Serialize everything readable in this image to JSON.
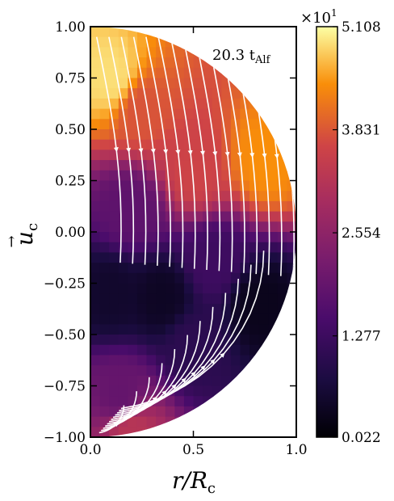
{
  "chart_data": {
    "type": "heatmap",
    "plot": "half-disk speed map with streamlines",
    "annotation": {
      "main": "20.3 t",
      "sub": "Alf"
    },
    "xlabel": {
      "text": "r/R",
      "sub": "c"
    },
    "ylabel": {
      "text": "u",
      "sub": "c",
      "accent": "→"
    },
    "xlim": [
      0.0,
      1.0
    ],
    "ylim": [
      -1.0,
      1.0
    ],
    "x_ticks": [
      0.0,
      0.5,
      1.0
    ],
    "x_tick_labels": [
      "0.0",
      "0.5",
      "1.0"
    ],
    "y_ticks": [
      1.0,
      0.75,
      0.5,
      0.25,
      0.0,
      -0.25,
      -0.5,
      -0.75,
      -1.0
    ],
    "y_tick_labels": [
      "1.00",
      "0.75",
      "0.50",
      "0.25",
      "0.00",
      "−0.25",
      "−0.50",
      "−0.75",
      "−1.00"
    ],
    "colorbar": {
      "colormap": "inferno",
      "range": [
        0.022,
        5.108
      ],
      "multiplier": {
        "base": "×10",
        "exp": "1"
      },
      "ticks": [
        5.108,
        3.831,
        2.554,
        1.277,
        0.022
      ],
      "tick_labels": [
        "5.108",
        "3.831",
        "2.554",
        "1.277",
        "0.022"
      ]
    },
    "field_samples": [
      {
        "r": 0.1,
        "z": 0.75,
        "value": 4.9
      },
      {
        "r": 0.25,
        "z": 0.6,
        "value": 3.8
      },
      {
        "r": 0.85,
        "z": 0.35,
        "value": 4.4
      },
      {
        "r": 0.5,
        "z": 0.3,
        "value": 3.6
      },
      {
        "r": 0.2,
        "z": 0.1,
        "value": 1.8
      },
      {
        "r": 0.6,
        "z": -0.15,
        "value": 1.3
      },
      {
        "r": 0.1,
        "z": -0.3,
        "value": 0.5
      },
      {
        "r": 0.35,
        "z": -0.32,
        "value": 0.4
      },
      {
        "r": 0.82,
        "z": -0.35,
        "value": 0.3
      },
      {
        "r": 0.5,
        "z": -0.55,
        "value": 1.0
      },
      {
        "r": 0.15,
        "z": -0.8,
        "value": 1.9
      },
      {
        "r": 0.2,
        "z": -0.97,
        "value": 3.2
      }
    ],
    "colors": {
      "streamline": "#ffffff",
      "axes": "#000000",
      "background": "#ffffff"
    }
  }
}
